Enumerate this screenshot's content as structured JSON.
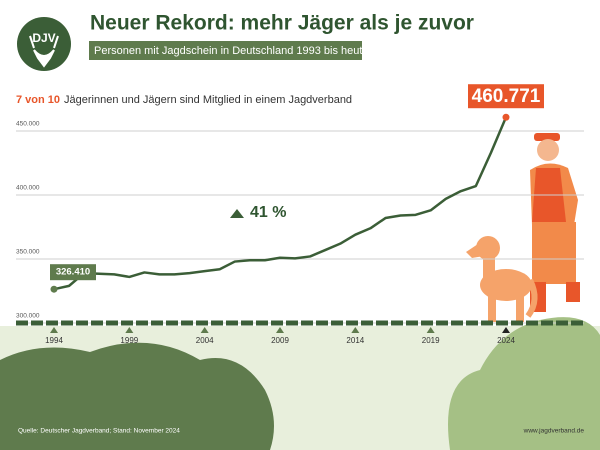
{
  "logo": "DJV",
  "chart_data": {
    "type": "line",
    "title": "Neuer Rekord: mehr Jäger als je zuvor",
    "subtitle": "Personen mit Jagdschein in Deutschland 1993 bis heute",
    "note_highlight": "7 von 10",
    "note": "Jägerinnen und Jägern sind Mitglied in einem Jagdverband",
    "annotation": "41 %",
    "x": [
      1994,
      1995,
      1996,
      1997,
      1998,
      1999,
      2000,
      2001,
      2002,
      2003,
      2004,
      2005,
      2006,
      2007,
      2008,
      2009,
      2010,
      2011,
      2012,
      2013,
      2014,
      2015,
      2016,
      2017,
      2018,
      2019,
      2020,
      2021,
      2022,
      2023,
      2024
    ],
    "values": [
      326410,
      329000,
      339000,
      338500,
      338000,
      336000,
      339500,
      338000,
      338000,
      339000,
      340500,
      342000,
      348000,
      349000,
      349000,
      351000,
      350500,
      352000,
      357000,
      362000,
      369000,
      374000,
      382000,
      384000,
      384500,
      388000,
      397000,
      403000,
      407000,
      433000,
      460771
    ],
    "value_labels": [
      "326.410",
      null,
      null,
      null,
      null,
      null,
      null,
      null,
      null,
      null,
      null,
      null,
      null,
      null,
      null,
      null,
      null,
      null,
      null,
      null,
      null,
      null,
      null,
      null,
      null,
      null,
      null,
      null,
      null,
      null,
      "460.771"
    ],
    "color": "#3b5e37",
    "xlim": [
      1994,
      2024
    ],
    "xticks": [
      1994,
      1999,
      2004,
      2009,
      2014,
      2019,
      2024
    ],
    "ylim": [
      300000,
      450000
    ],
    "yticks": [
      {
        "value": 300000,
        "label": "300.000"
      },
      {
        "value": 350000,
        "label": "350.000"
      },
      {
        "value": 400000,
        "label": "400.000"
      },
      {
        "value": 450000,
        "label": "450.000"
      }
    ],
    "grid": true,
    "source": "Quelle: Deutscher Jagdverband; Stand: November 2024",
    "website": "www.jagdverband.de"
  }
}
